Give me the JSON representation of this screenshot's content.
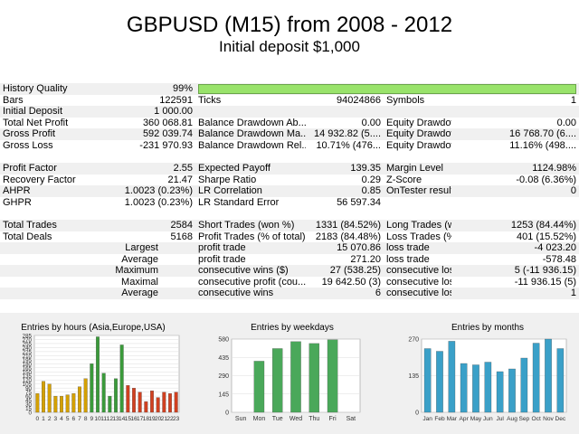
{
  "header": {
    "title": "GBPUSD (M15) from 2008 - 2012",
    "subtitle": "Initial deposit $1,000"
  },
  "report": {
    "rows": [
      {
        "cells": [
          "History Quality",
          "99%",
          "",
          "",
          "",
          ""
        ],
        "bar": true,
        "shade": true
      },
      {
        "cells": [
          "Bars",
          "122591",
          "Ticks",
          "94024866",
          "Symbols",
          "1"
        ],
        "shade": false
      },
      {
        "cells": [
          "Initial Deposit",
          "1 000.00",
          "",
          "",
          "",
          ""
        ],
        "shade": true
      },
      {
        "cells": [
          "Total Net Profit",
          "360 068.81",
          "Balance Drawdown Ab...",
          "0.00",
          "Equity Drawdown Abso...",
          "0.00"
        ],
        "shade": false
      },
      {
        "cells": [
          "Gross Profit",
          "592 039.74",
          "Balance Drawdown Ma...",
          "14 932.82 (5....",
          "Equity Drawdown Maxi...",
          "16 768.70 (6...."
        ],
        "shade": true
      },
      {
        "cells": [
          "Gross Loss",
          "-231 970.93",
          "Balance Drawdown Rel...",
          "10.71% (476...",
          "Equity Drawdown Rela...",
          "11.16% (498...."
        ],
        "shade": false
      },
      {
        "blank": true
      },
      {
        "cells": [
          "Profit Factor",
          "2.55",
          "Expected Payoff",
          "139.35",
          "Margin Level",
          "1124.98%"
        ],
        "shade": true
      },
      {
        "cells": [
          "Recovery Factor",
          "21.47",
          "Sharpe Ratio",
          "0.29",
          "Z-Score",
          "-0.08 (6.36%)"
        ],
        "shade": false
      },
      {
        "cells": [
          "AHPR",
          "1.0023 (0.23%)",
          "LR Correlation",
          "0.85",
          "OnTester result",
          "0"
        ],
        "shade": true
      },
      {
        "cells": [
          "GHPR",
          "1.0023 (0.23%)",
          "LR Standard Error",
          "56 597.34",
          "",
          ""
        ],
        "shade": false
      },
      {
        "blank": true
      },
      {
        "cells": [
          "Total Trades",
          "2584",
          "Short Trades (won %)",
          "1331 (84.52%)",
          "Long Trades (won %)",
          "1253 (84.44%)"
        ],
        "shade": true
      },
      {
        "cells": [
          "Total Deals",
          "5168",
          "Profit Trades (% of total)",
          "2183 (84.48%)",
          "Loss Trades (% of total)",
          "401 (15.52%)"
        ],
        "shade": false
      },
      {
        "cells": [
          "Largest",
          "",
          "profit trade",
          "15 070.86",
          "loss trade",
          "-4 023.20"
        ],
        "shade": true,
        "rightLabel": true
      },
      {
        "cells": [
          "Average",
          "",
          "profit trade",
          "271.20",
          "loss trade",
          "-578.48"
        ],
        "shade": false,
        "rightLabel": true
      },
      {
        "cells": [
          "Maximum",
          "",
          "consecutive wins ($)",
          "27 (538.25)",
          "consecutive losses ($)",
          "5 (-11 936.15)"
        ],
        "shade": true,
        "rightLabel": true
      },
      {
        "cells": [
          "Maximal",
          "",
          "consecutive profit (cou...",
          "19 642.50 (3)",
          "consecutive loss (count)",
          "-11 936.15 (5)"
        ],
        "shade": false,
        "rightLabel": true
      },
      {
        "cells": [
          "Average",
          "",
          "consecutive wins",
          "6",
          "consecutive losses",
          "1"
        ],
        "shade": true,
        "rightLabel": true
      }
    ]
  },
  "chart_data": [
    {
      "type": "bar",
      "title": "Entries by hours (Asia,Europe,USA)",
      "categories": [
        "0",
        "1",
        "2",
        "3",
        "4",
        "5",
        "6",
        "7",
        "8",
        "9",
        "10",
        "11",
        "12",
        "13",
        "14",
        "15",
        "16",
        "17",
        "18",
        "19",
        "20",
        "21",
        "22",
        "23"
      ],
      "values": [
        70,
        115,
        105,
        60,
        60,
        65,
        70,
        95,
        125,
        180,
        280,
        145,
        60,
        125,
        250,
        100,
        90,
        75,
        40,
        80,
        55,
        75,
        70,
        75
      ],
      "colors": [
        "#d4a000",
        "#d4a000",
        "#d4a000",
        "#d4a000",
        "#d4a000",
        "#d4a000",
        "#d4a000",
        "#d4a000",
        "#d4a000",
        "#3a9a3a",
        "#3a9a3a",
        "#3a9a3a",
        "#3a9a3a",
        "#3a9a3a",
        "#3a9a3a",
        "#d04020",
        "#d04020",
        "#d04020",
        "#d04020",
        "#d04020",
        "#d04020",
        "#d04020",
        "#d04020",
        "#d04020"
      ],
      "yticks": [
        0,
        15,
        30,
        45,
        60,
        75,
        90,
        105,
        120,
        135,
        150,
        165,
        180,
        195,
        210,
        225,
        240,
        255,
        270,
        285
      ],
      "ylim": [
        0,
        285
      ]
    },
    {
      "type": "bar",
      "title": "Entries by weekdays",
      "categories": [
        "Sun",
        "Mon",
        "Tue",
        "Wed",
        "Thu",
        "Fri",
        "Sat"
      ],
      "values": [
        0,
        405,
        505,
        560,
        545,
        575,
        0
      ],
      "colors": [
        "#4aa85a"
      ],
      "yticks": [
        0,
        145,
        290,
        435,
        580
      ],
      "ylim": [
        0,
        580
      ]
    },
    {
      "type": "bar",
      "title": "Entries by months",
      "categories": [
        "Jan",
        "Feb",
        "Mar",
        "Apr",
        "May",
        "Jun",
        "Jul",
        "Aug",
        "Sep",
        "Oct",
        "Nov",
        "Dec"
      ],
      "values": [
        235,
        225,
        262,
        180,
        175,
        185,
        150,
        160,
        200,
        255,
        270,
        235
      ],
      "colors": [
        "#3aa0c8"
      ],
      "yticks": [
        0,
        135,
        270
      ],
      "ylim": [
        0,
        270
      ]
    }
  ]
}
